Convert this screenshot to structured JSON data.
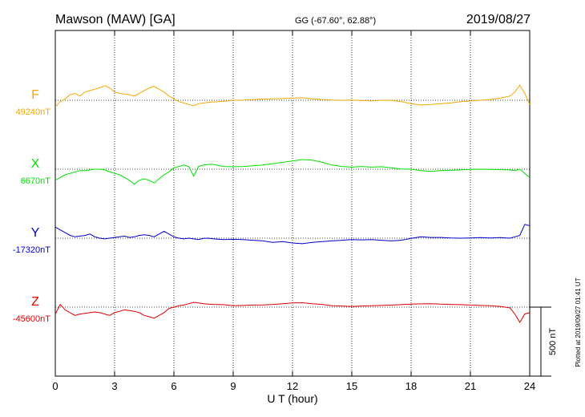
{
  "header": {
    "station": "Mawson (MAW)  [GA]",
    "coords": "GG (-67.60°,  62.88°)",
    "date": "2019/08/27"
  },
  "footer_note": "Plotted at 2019/09/27 01:41 UT",
  "chart_data": {
    "type": "line",
    "xlabel": "U T (hour)",
    "xlim": [
      0,
      24
    ],
    "xticks": [
      0,
      3,
      6,
      9,
      12,
      15,
      18,
      21,
      24
    ],
    "scale_bar": {
      "label": "500 nT",
      "value_nT": 500
    },
    "grid": "dotted",
    "series": [
      {
        "name": "F",
        "baseline_label": "49240nT",
        "baseline": 49240,
        "color": "#f5a800",
        "x": [
          0,
          0.25,
          0.5,
          0.75,
          1,
          1.25,
          1.5,
          1.75,
          2,
          2.25,
          2.5,
          2.75,
          3,
          3.25,
          3.5,
          3.75,
          4,
          4.25,
          4.5,
          4.75,
          5,
          5.25,
          5.5,
          5.75,
          6,
          6.25,
          6.5,
          6.75,
          7,
          7.25,
          7.5,
          7.75,
          8,
          8.5,
          9,
          9.5,
          10,
          10.5,
          11,
          11.5,
          12,
          12.5,
          13,
          13.5,
          14,
          14.5,
          15,
          15.5,
          16,
          16.5,
          17,
          17.5,
          18,
          18.5,
          19,
          19.5,
          20,
          20.5,
          21,
          21.5,
          22,
          22.5,
          23,
          23.25,
          23.5,
          23.75,
          24
        ],
        "y": [
          49190,
          49230,
          49250,
          49280,
          49290,
          49270,
          49300,
          49310,
          49320,
          49330,
          49345,
          49330,
          49300,
          49290,
          49285,
          49280,
          49270,
          49290,
          49310,
          49330,
          49340,
          49320,
          49300,
          49270,
          49250,
          49230,
          49220,
          49210,
          49200,
          49215,
          49220,
          49225,
          49228,
          49232,
          49240,
          49242,
          49245,
          49248,
          49250,
          49252,
          49255,
          49258,
          49250,
          49245,
          49242,
          49240,
          49242,
          49238,
          49235,
          49240,
          49238,
          49230,
          49215,
          49205,
          49210,
          49215,
          49220,
          49230,
          49235,
          49240,
          49245,
          49255,
          49270,
          49300,
          49350,
          49290,
          49210
        ]
      },
      {
        "name": "X",
        "baseline_label": "6670nT",
        "baseline": 6670,
        "color": "#00e000",
        "x": [
          0,
          0.25,
          0.5,
          0.75,
          1,
          1.25,
          1.5,
          1.75,
          2,
          2.25,
          2.5,
          2.75,
          3,
          3.25,
          3.5,
          3.75,
          4,
          4.25,
          4.5,
          4.75,
          5,
          5.25,
          5.5,
          5.75,
          6,
          6.25,
          6.5,
          6.75,
          7,
          7.25,
          7.5,
          7.75,
          8,
          8.5,
          9,
          9.5,
          10,
          10.5,
          11,
          11.5,
          12,
          12.5,
          13,
          13.5,
          14,
          14.5,
          15,
          15.5,
          16,
          16.5,
          17,
          17.5,
          18,
          18.5,
          19,
          19.5,
          20,
          20.5,
          21,
          21.5,
          22,
          22.5,
          23,
          23.25,
          23.5,
          23.75,
          24
        ],
        "y": [
          6590,
          6610,
          6630,
          6640,
          6650,
          6660,
          6660,
          6665,
          6670,
          6670,
          6665,
          6650,
          6640,
          6630,
          6610,
          6590,
          6560,
          6590,
          6600,
          6590,
          6570,
          6600,
          6630,
          6650,
          6680,
          6690,
          6700,
          6690,
          6620,
          6690,
          6700,
          6705,
          6705,
          6690,
          6688,
          6690,
          6695,
          6700,
          6710,
          6720,
          6730,
          6740,
          6735,
          6720,
          6700,
          6690,
          6685,
          6690,
          6685,
          6688,
          6680,
          6672,
          6670,
          6660,
          6655,
          6660,
          6662,
          6665,
          6668,
          6670,
          6668,
          6667,
          6665,
          6660,
          6670,
          6640,
          6610
        ]
      },
      {
        "name": "Y",
        "baseline_label": "-17320nT",
        "baseline": -17320,
        "color": "#0000cc",
        "x": [
          0,
          0.25,
          0.5,
          0.75,
          1,
          1.25,
          1.5,
          1.75,
          2,
          2.25,
          2.5,
          2.75,
          3,
          3.25,
          3.5,
          3.75,
          4,
          4.25,
          4.5,
          4.75,
          5,
          5.25,
          5.5,
          5.75,
          6,
          6.25,
          6.5,
          6.75,
          7,
          7.25,
          7.5,
          7.75,
          8,
          8.5,
          9,
          9.5,
          10,
          10.5,
          11,
          11.5,
          12,
          12.5,
          13,
          13.5,
          14,
          14.5,
          15,
          15.5,
          16,
          16.5,
          17,
          17.5,
          18,
          18.5,
          19,
          19.5,
          20,
          20.5,
          21,
          21.5,
          22,
          22.5,
          23,
          23.25,
          23.5,
          23.75,
          24
        ],
        "y": [
          -17240,
          -17260,
          -17280,
          -17300,
          -17310,
          -17305,
          -17300,
          -17290,
          -17310,
          -17320,
          -17325,
          -17320,
          -17315,
          -17310,
          -17305,
          -17315,
          -17310,
          -17300,
          -17295,
          -17300,
          -17310,
          -17290,
          -17270,
          -17290,
          -17310,
          -17320,
          -17325,
          -17320,
          -17325,
          -17330,
          -17322,
          -17320,
          -17325,
          -17330,
          -17328,
          -17330,
          -17335,
          -17340,
          -17350,
          -17345,
          -17355,
          -17360,
          -17350,
          -17345,
          -17340,
          -17335,
          -17330,
          -17332,
          -17330,
          -17335,
          -17340,
          -17335,
          -17322,
          -17310,
          -17315,
          -17315,
          -17318,
          -17320,
          -17318,
          -17316,
          -17318,
          -17316,
          -17320,
          -17310,
          -17300,
          -17220,
          -17230
        ]
      },
      {
        "name": "Z",
        "baseline_label": "-45600nT",
        "baseline": -45600,
        "color": "#e00000",
        "x": [
          0,
          0.25,
          0.5,
          0.75,
          1,
          1.25,
          1.5,
          1.75,
          2,
          2.25,
          2.5,
          2.75,
          3,
          3.25,
          3.5,
          3.75,
          4,
          4.25,
          4.5,
          4.75,
          5,
          5.25,
          5.5,
          5.75,
          6,
          6.25,
          6.5,
          6.75,
          7,
          7.25,
          7.5,
          7.75,
          8,
          8.5,
          9,
          9.5,
          10,
          10.5,
          11,
          11.5,
          12,
          12.5,
          13,
          13.5,
          14,
          14.5,
          15,
          15.5,
          16,
          16.5,
          17,
          17.5,
          18,
          18.5,
          19,
          19.5,
          20,
          20.5,
          21,
          21.5,
          22,
          22.5,
          23,
          23.25,
          23.5,
          23.75,
          24
        ],
        "y": [
          -45650,
          -45580,
          -45620,
          -45640,
          -45660,
          -45650,
          -45645,
          -45640,
          -45635,
          -45640,
          -45650,
          -45660,
          -45640,
          -45630,
          -45620,
          -45625,
          -45630,
          -45640,
          -45660,
          -45670,
          -45680,
          -45660,
          -45640,
          -45610,
          -45600,
          -45590,
          -45585,
          -45575,
          -45565,
          -45570,
          -45575,
          -45578,
          -45580,
          -45582,
          -45590,
          -45588,
          -45585,
          -45584,
          -45580,
          -45575,
          -45570,
          -45568,
          -45575,
          -45580,
          -45590,
          -45592,
          -45595,
          -45592,
          -45590,
          -45588,
          -45585,
          -45582,
          -45578,
          -45576,
          -45575,
          -45578,
          -45580,
          -45582,
          -45585,
          -45588,
          -45590,
          -45595,
          -45605,
          -45650,
          -45710,
          -45650,
          -45640
        ]
      }
    ]
  }
}
